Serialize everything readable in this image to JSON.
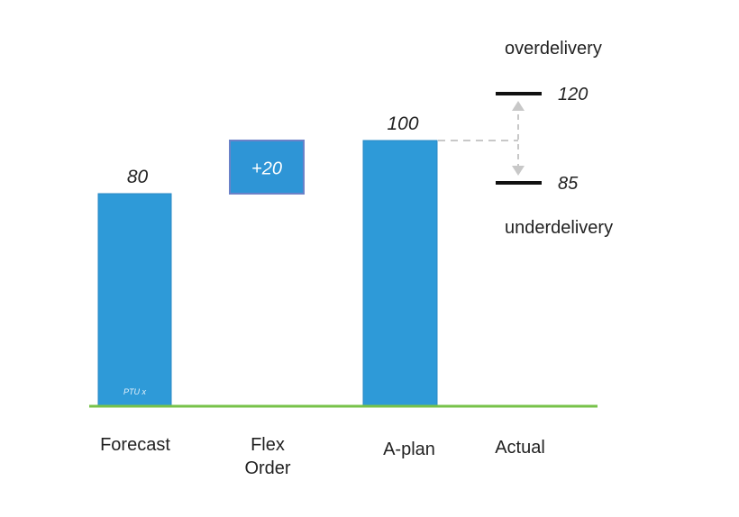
{
  "chart_data": {
    "type": "bar",
    "categories": [
      "Forecast",
      "Flex\nOrder",
      "A-plan",
      "Actual"
    ],
    "bars": [
      {
        "category": "Forecast",
        "start": 0,
        "end": 80,
        "label": "80",
        "inner_label": "PTU x"
      },
      {
        "category": "Flex\nOrder",
        "start": 80,
        "end": 100,
        "label": "+20"
      },
      {
        "category": "A-plan",
        "start": 0,
        "end": 100,
        "label": "100"
      },
      {
        "category": "Actual",
        "start": null,
        "end": null,
        "label": ""
      }
    ],
    "thresholds": [
      {
        "name": "overdelivery",
        "value": 120,
        "label": "120"
      },
      {
        "name": "underdelivery",
        "value": 85,
        "label": "85"
      }
    ],
    "title": "",
    "xlabel": "",
    "ylabel": "",
    "ylim": [
      0,
      130
    ]
  },
  "colors": {
    "bar": "#2e9ad8",
    "bar_border": "#2a88c5",
    "delta_bar": "#2e95d6",
    "delta_border": "#6b82c8",
    "baseline": "#77c24a",
    "dashed": "#c8c8c8",
    "threshold": "#111111",
    "text": "#222222"
  }
}
